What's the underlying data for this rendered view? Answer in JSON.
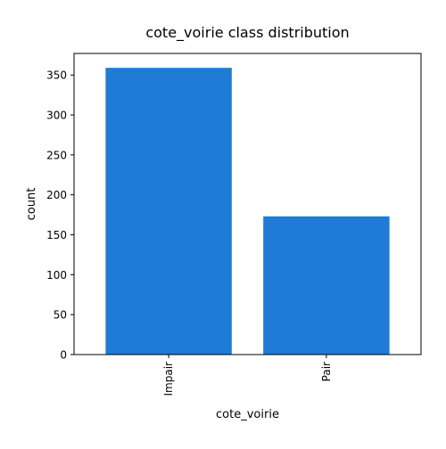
{
  "chart_data": {
    "type": "bar",
    "title": "cote_voirie class distribution",
    "xlabel": "cote_voirie",
    "ylabel": "count",
    "categories": [
      "Impair",
      "Pair"
    ],
    "values": [
      359,
      173
    ],
    "ylim": [
      0,
      377
    ],
    "yticks": [
      0,
      50,
      100,
      150,
      200,
      250,
      300,
      350
    ],
    "grid": false,
    "legend": "none",
    "bar_color": "#1f7bd6",
    "axis_color": "#000000"
  }
}
